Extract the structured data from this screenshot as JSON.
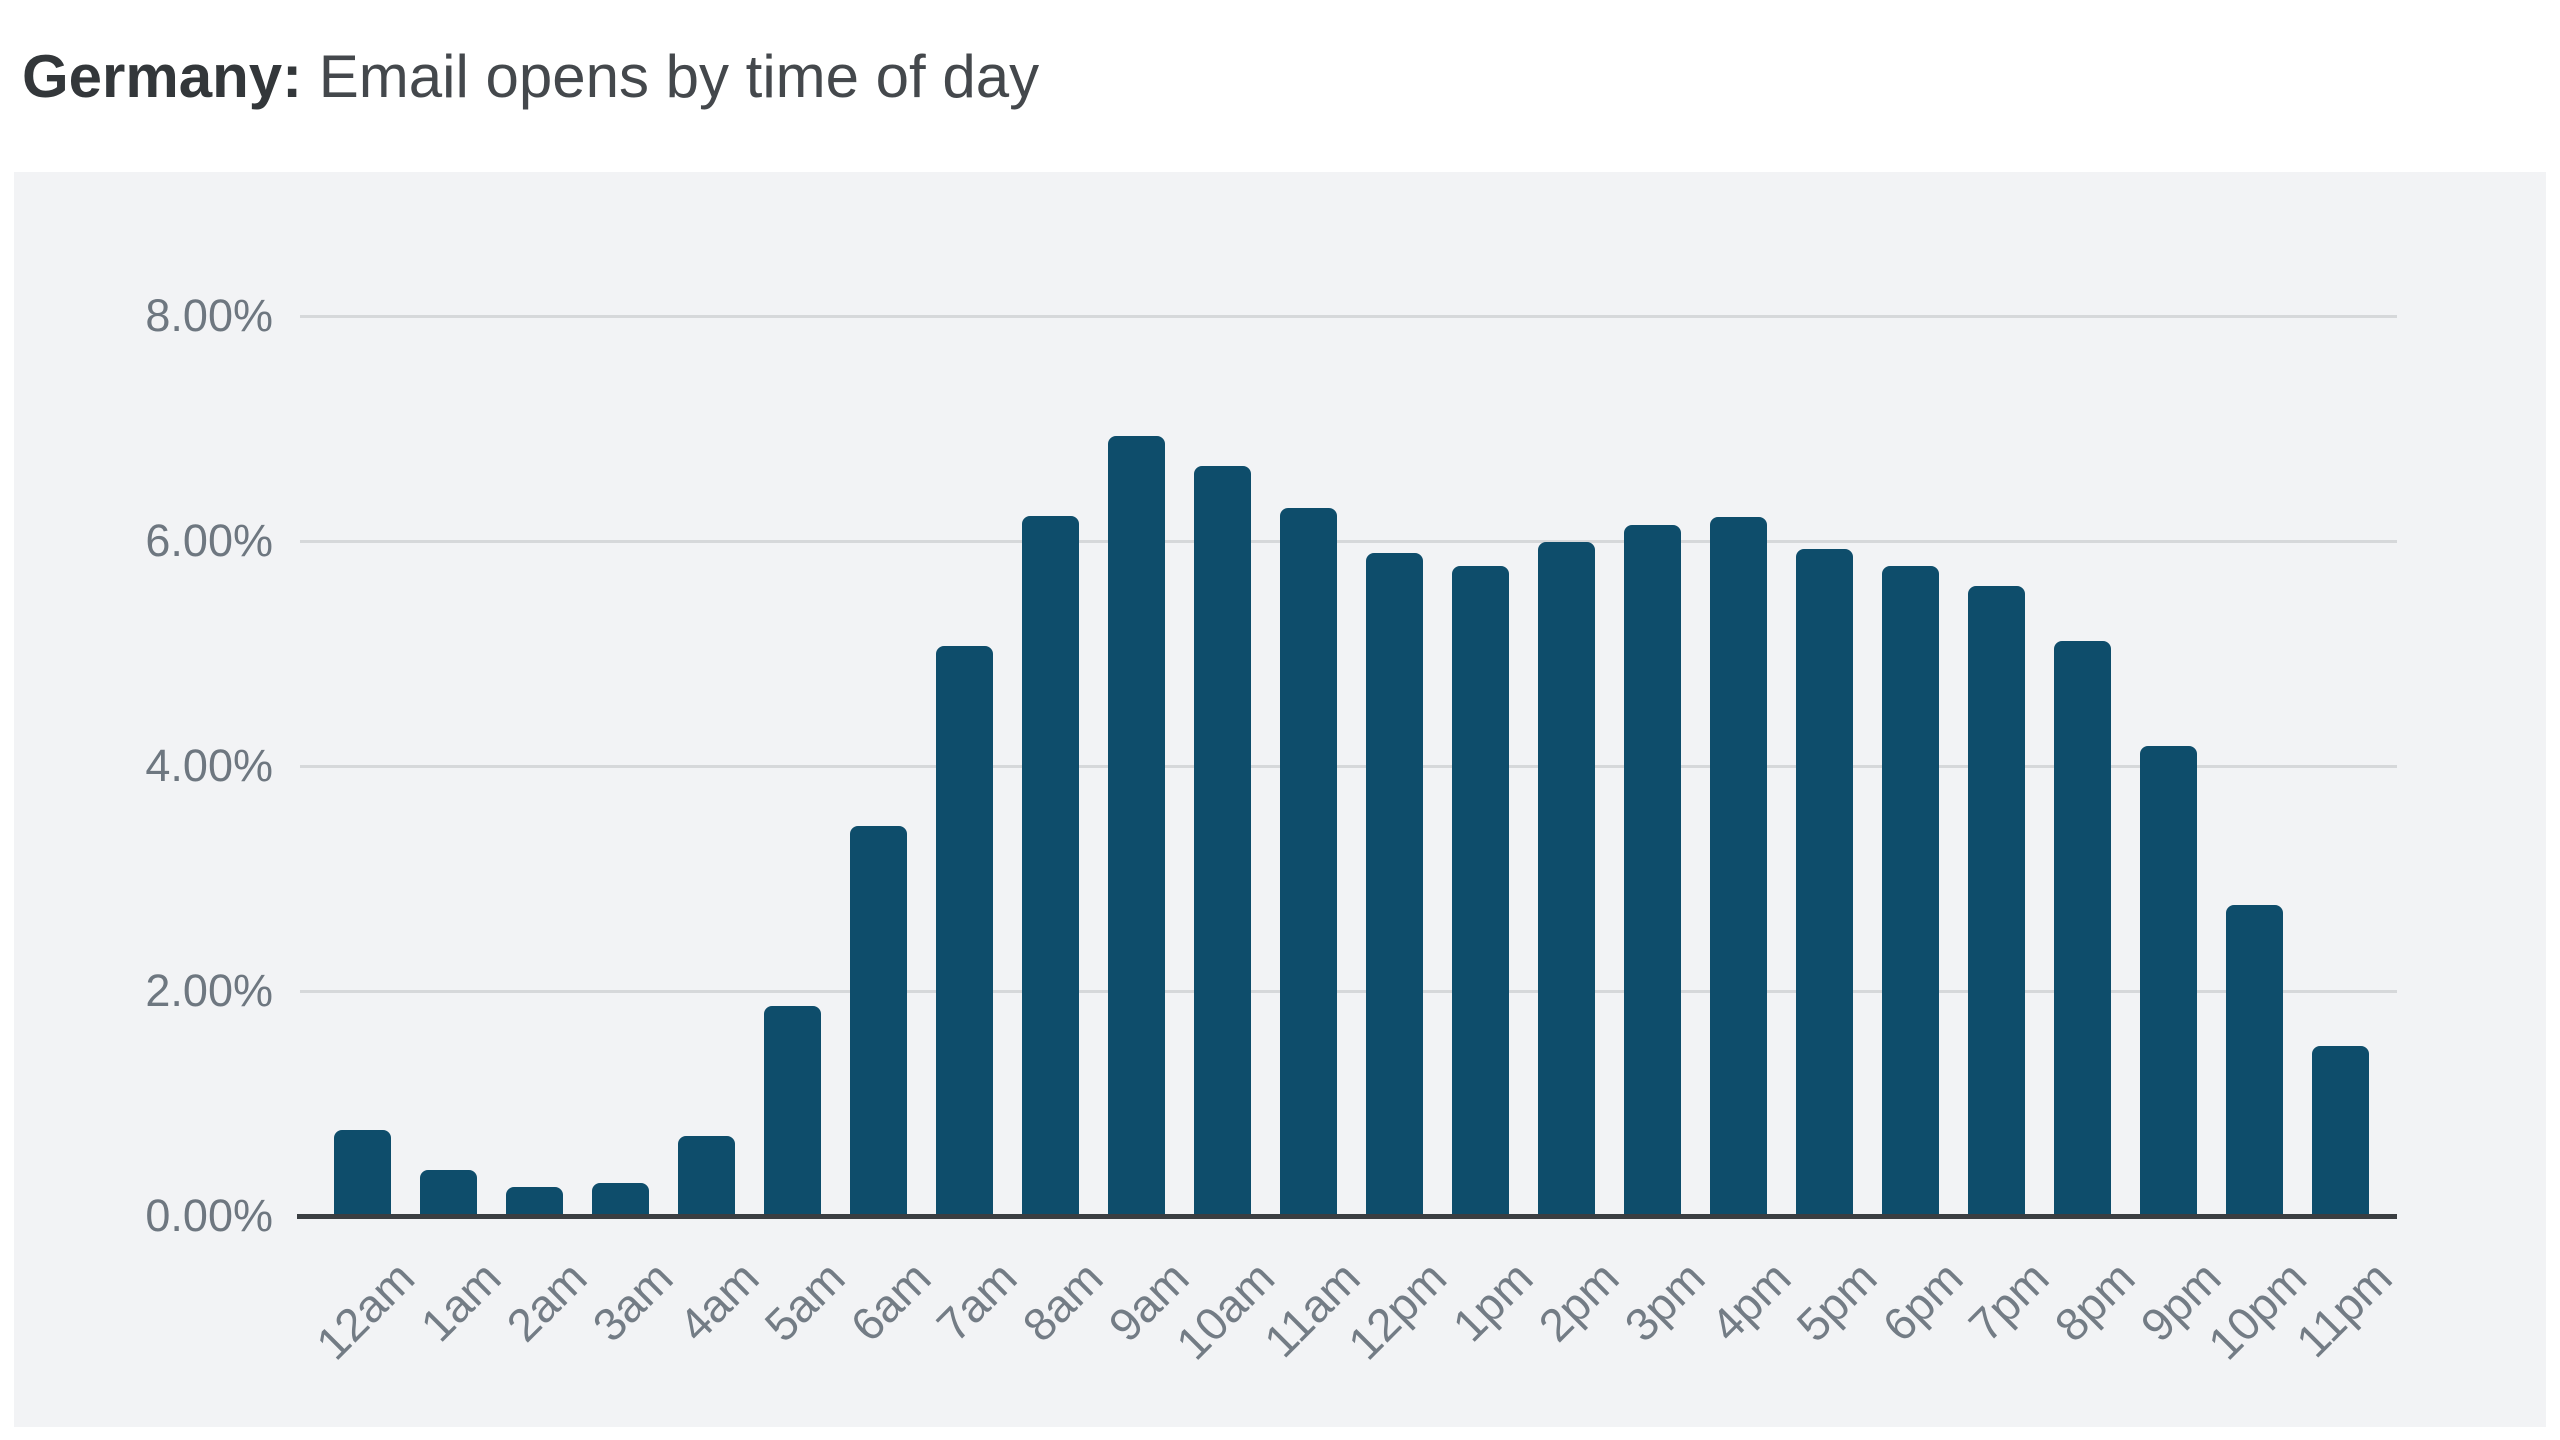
{
  "header": {
    "title_prefix": "Germany:",
    "title_rest": " Email opens by time of day"
  },
  "chart_data": {
    "type": "bar",
    "title": "Germany: Email opens by time of day",
    "categories": [
      "12am",
      "1am",
      "2am",
      "3am",
      "4am",
      "5am",
      "6am",
      "7am",
      "8am",
      "9am",
      "10am",
      "11am",
      "12pm",
      "1pm",
      "2pm",
      "3pm",
      "4pm",
      "5pm",
      "6pm",
      "7pm",
      "8pm",
      "9pm",
      "10pm",
      "11pm"
    ],
    "values": [
      0.76,
      0.41,
      0.26,
      0.29,
      0.71,
      1.87,
      3.47,
      5.07,
      6.22,
      6.93,
      6.67,
      6.29,
      5.89,
      5.78,
      5.99,
      6.14,
      6.21,
      5.93,
      5.78,
      5.6,
      5.11,
      4.18,
      2.76,
      1.51
    ],
    "value_unit": "%",
    "xlabel": "",
    "ylabel": "",
    "y_ticks": [
      {
        "label": "8.00%",
        "value": 8
      },
      {
        "label": "6.00%",
        "value": 6
      },
      {
        "label": "4.00%",
        "value": 4
      },
      {
        "label": "2.00%",
        "value": 2
      },
      {
        "label": "0.00%",
        "value": 0
      }
    ],
    "ylim": [
      0,
      8
    ],
    "grid": true,
    "legend": "none",
    "colors": {
      "bar": "#0E4D6B",
      "plot_background": "#F2F3F5",
      "gridline": "#D6D8DA",
      "axis_line": "#3A3E42",
      "y_tick_label": "#6E7780",
      "x_tick_label": "#737C85",
      "title_prefix": "#33373A",
      "title_rest": "#44484C",
      "page_background": "#FFFFFF"
    }
  }
}
